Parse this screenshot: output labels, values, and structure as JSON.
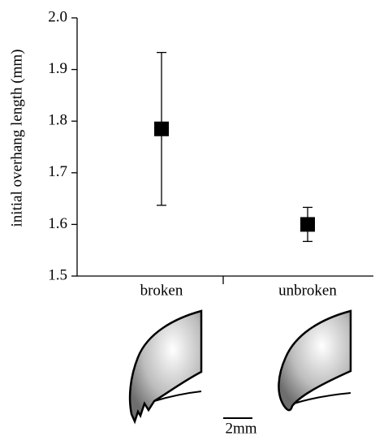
{
  "chart_data": {
    "type": "errorbar",
    "y_label": "initial overhang length (mm)",
    "categories": [
      "broken",
      "unbroken"
    ],
    "values": [
      1.785,
      1.6
    ],
    "errors": [
      0.148,
      0.033
    ],
    "color": "#000000",
    "ylim": [
      1.5,
      2.0
    ],
    "yticks": [
      {
        "value": 1.5,
        "label": "1.5"
      },
      1.6,
      1.7,
      1.8,
      1.9,
      {
        "value": 2.0,
        "label": "2.0"
      }
    ],
    "scale_bar_label": "2mm"
  }
}
